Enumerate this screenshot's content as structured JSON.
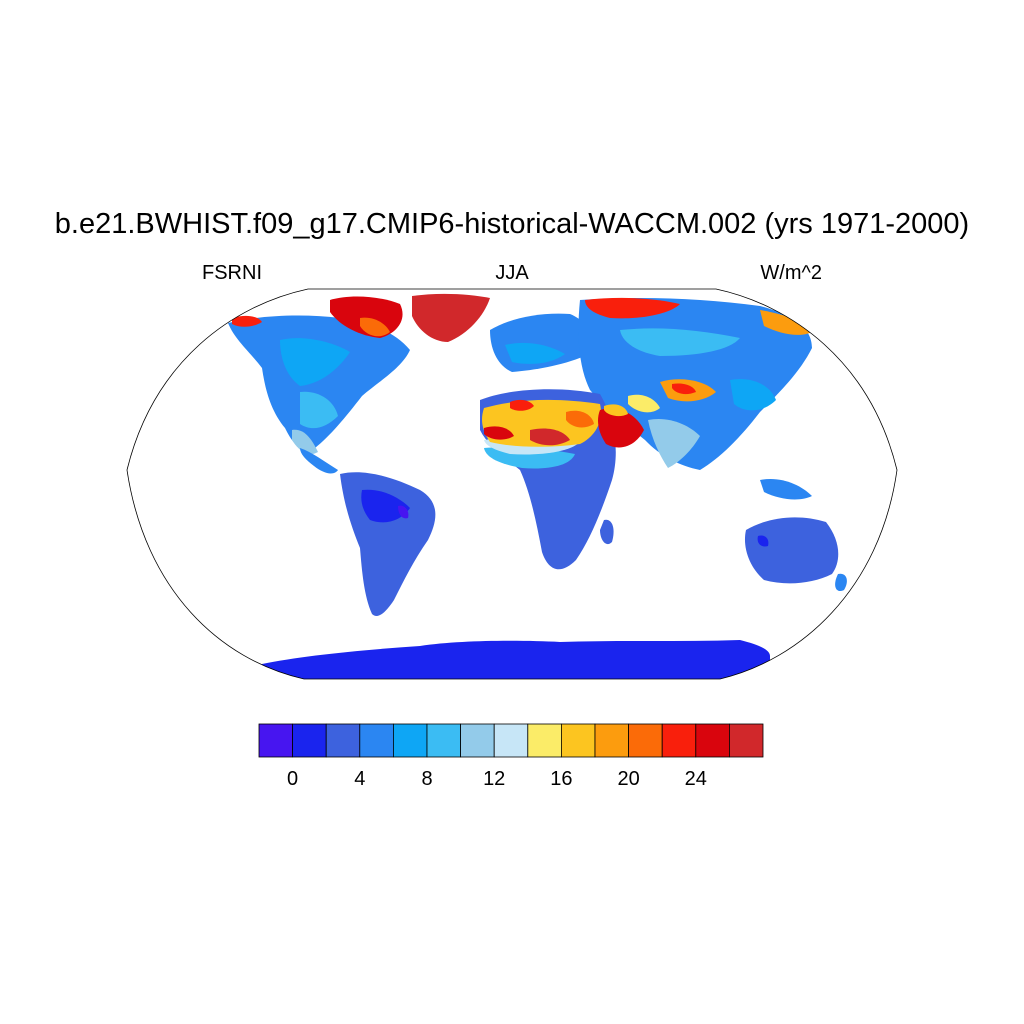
{
  "title": "b.e21.BWHIST.f09_g17.CMIP6-historical-WACCM.002 (yrs 1971-2000)",
  "left_label": "FSRNI",
  "center_label": "JJA",
  "right_label": "W/m^2",
  "colorbar": {
    "colors": [
      "#4715f0",
      "#1a24ee",
      "#3d62de",
      "#2b86f2",
      "#0ea6f5",
      "#3bbcf3",
      "#93cbea",
      "#c7e6f7",
      "#fbec68",
      "#fcc520",
      "#fc9c0e",
      "#fb6b08",
      "#f91f0c",
      "#d9050d",
      "#d1282b"
    ],
    "tick_labels": [
      "0",
      "4",
      "8",
      "12",
      "16",
      "20",
      "24"
    ]
  },
  "chart_data": {
    "type": "heatmap",
    "variable": "FSRNI",
    "season": "JJA",
    "units": "W/m^2",
    "projection": "robinson",
    "levels": [
      -1,
      0,
      2,
      4,
      6,
      8,
      10,
      12,
      14,
      16,
      18,
      20,
      22,
      24,
      26
    ],
    "colorbar_ticks": [
      0,
      4,
      8,
      12,
      16,
      20,
      24
    ],
    "regions": [
      {
        "name": "Greenland",
        "value": 26
      },
      {
        "name": "Sahara",
        "value": 25
      },
      {
        "name": "Arabian Peninsula",
        "value": 24
      },
      {
        "name": "Tibetan Plateau",
        "value": 20
      },
      {
        "name": "Siberian Arctic coast",
        "value": 23
      },
      {
        "name": "Canadian Arctic Archipelago",
        "value": 24
      },
      {
        "name": "Sahel",
        "value": 13
      },
      {
        "name": "North America",
        "value": 7
      },
      {
        "name": "Europe",
        "value": 8
      },
      {
        "name": "Central Asia",
        "value": 9
      },
      {
        "name": "India",
        "value": 11
      },
      {
        "name": "Southeast Asia",
        "value": 7
      },
      {
        "name": "Amazon",
        "value": 3
      },
      {
        "name": "Southern Africa",
        "value": 4
      },
      {
        "name": "Australia",
        "value": 4
      },
      {
        "name": "Antarctica",
        "value": 1
      }
    ]
  }
}
